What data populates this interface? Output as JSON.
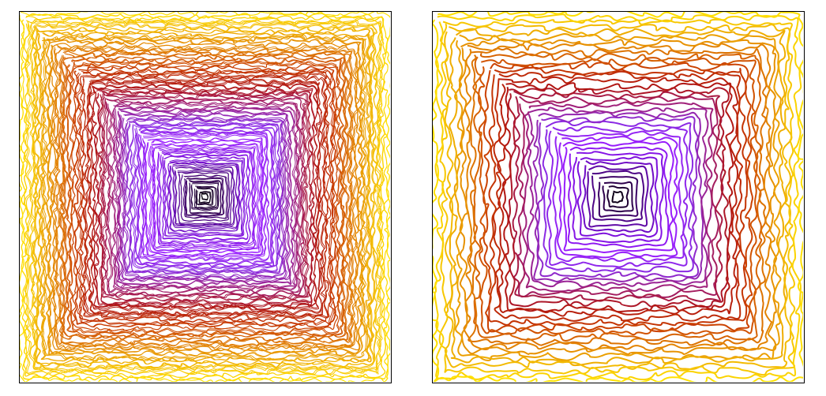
{
  "figure": {
    "panels": [
      {
        "id": "dense",
        "loops": 70,
        "stroke": 1.0,
        "noise": 0.55
      },
      {
        "id": "coarse",
        "loops": 38,
        "stroke": 2.0,
        "noise": 0.85
      }
    ],
    "colormap": [
      "#000000",
      "#3a0060",
      "#7a0fd8",
      "#9b1fff",
      "#8a2be2",
      "#a0207a",
      "#b01414",
      "#c83a00",
      "#e07a00",
      "#f0b000",
      "#ffe000"
    ]
  }
}
